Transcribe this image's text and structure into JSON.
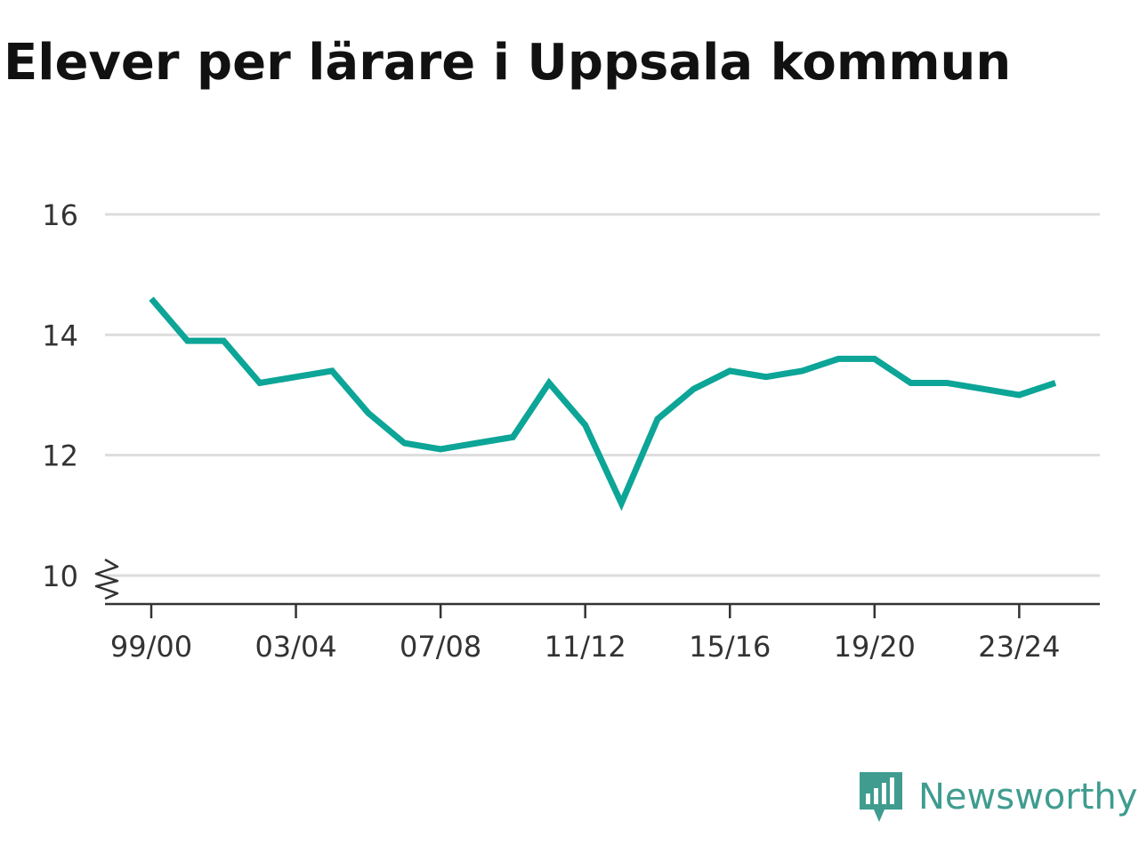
{
  "chart_data": {
    "type": "line",
    "title": "Elever per lärare i Uppsala kommun",
    "xlabel": "",
    "ylabel": "",
    "x": [
      "99/00",
      "00/01",
      "01/02",
      "02/03",
      "03/04",
      "04/05",
      "05/06",
      "06/07",
      "07/08",
      "08/09",
      "09/10",
      "10/11",
      "11/12",
      "12/13",
      "13/14",
      "14/15",
      "15/16",
      "16/17",
      "17/18",
      "18/19",
      "19/20",
      "20/21",
      "21/22",
      "22/23",
      "23/24",
      "24/25"
    ],
    "x_tick_labels": [
      "99/00",
      "03/04",
      "07/08",
      "11/12",
      "15/16",
      "19/20",
      "23/24"
    ],
    "y_ticks": [
      10,
      12,
      14,
      16
    ],
    "ylim": [
      9.5,
      16
    ],
    "axis_break": true,
    "grid": true,
    "series": [
      {
        "values": [
          14.6,
          13.9,
          13.9,
          13.2,
          13.3,
          13.4,
          12.7,
          12.2,
          12.1,
          12.2,
          12.3,
          13.2,
          12.5,
          11.2,
          12.6,
          13.1,
          13.4,
          13.3,
          13.4,
          13.6,
          13.6,
          13.2,
          13.2,
          13.1,
          13.0,
          13.2
        ],
        "color": "#0ca597"
      }
    ]
  },
  "colors": {
    "line": "#0ca597",
    "grid": "#dddddd",
    "axis": "#333333",
    "brand": "#3f9c8f"
  },
  "brand": {
    "name": "Newsworthy",
    "icon": "newsworthy-logo-icon"
  }
}
